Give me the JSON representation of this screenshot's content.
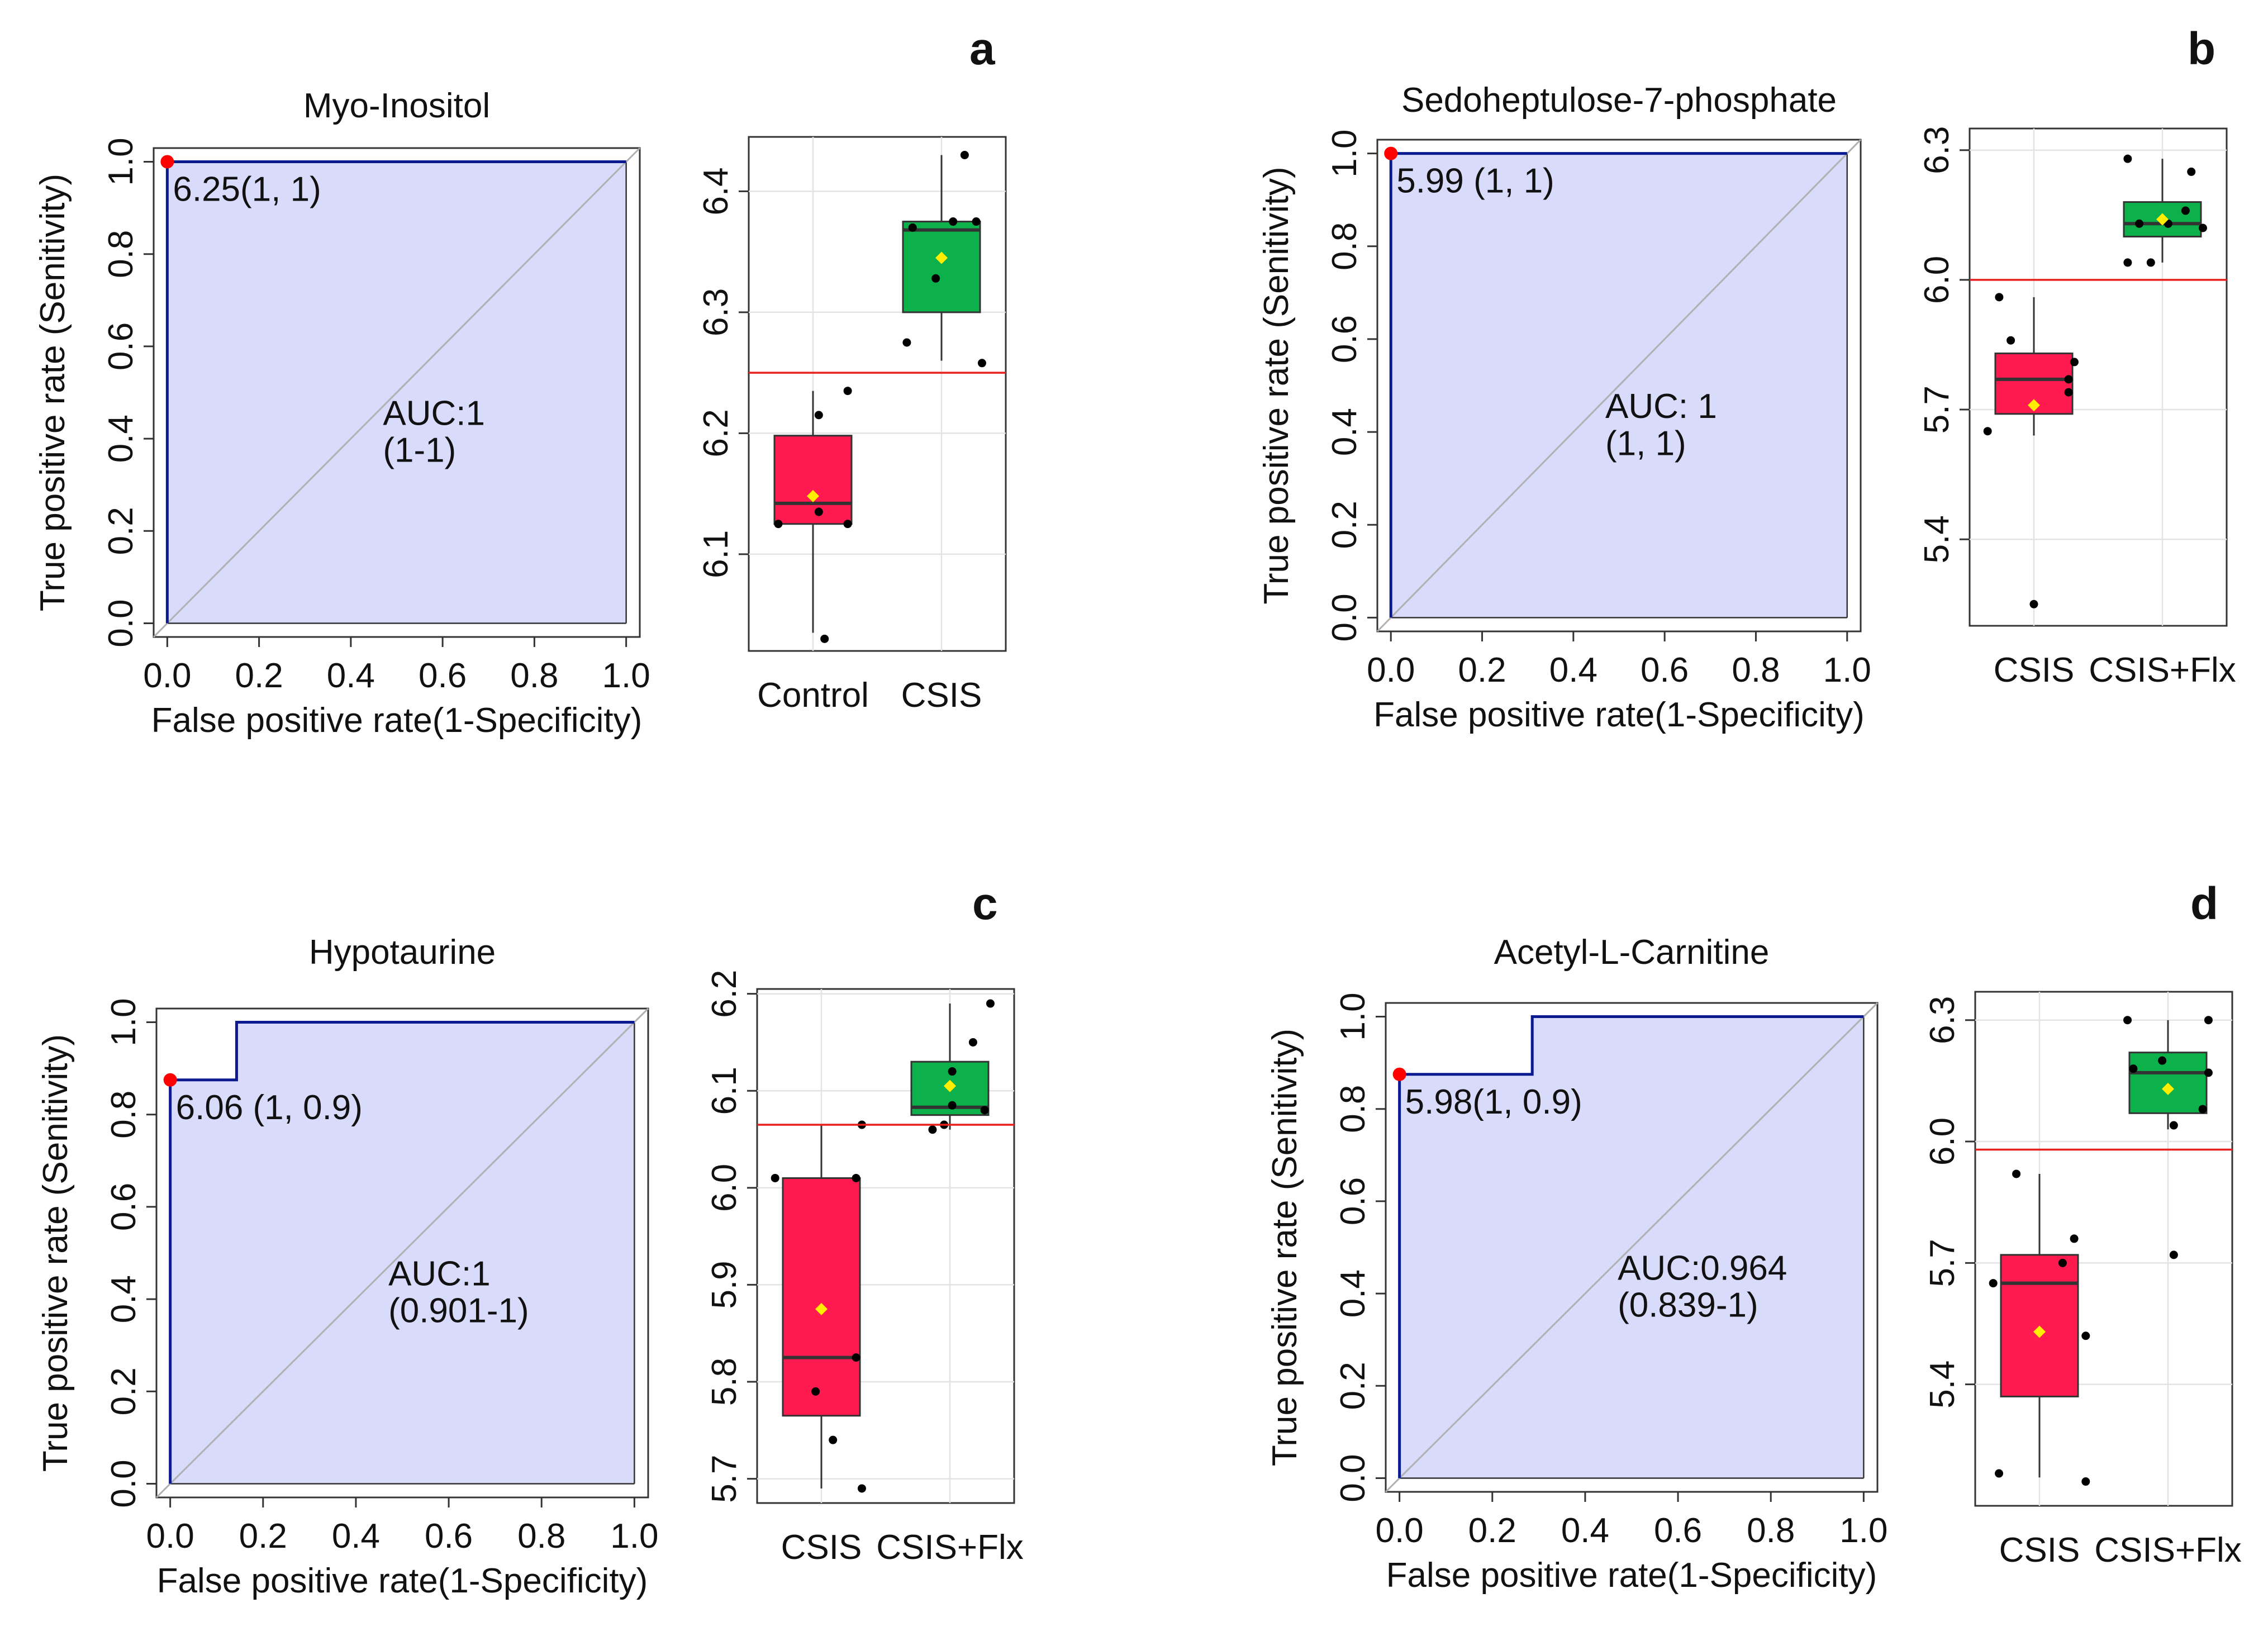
{
  "chart_data": [
    {
      "panel_letter": "a",
      "type": "line",
      "title": "Myo-Inositol",
      "xlabel": "False positive rate(1-Specificity)",
      "ylabel": "True positive rate (Senitivity)",
      "xlim": [
        0,
        1
      ],
      "ylim": [
        0,
        1
      ],
      "ticks": [
        "0.0",
        "0.2",
        "0.4",
        "0.6",
        "0.8",
        "1.0"
      ],
      "roc_x": [
        0,
        0,
        1
      ],
      "roc_y": [
        0,
        1,
        1
      ],
      "optimal_point": [
        0,
        1
      ],
      "threshold_label": "6.25(1, 1)",
      "auc_label": "AUC:1",
      "ci_label": "(1-1)",
      "boxplot": {
        "type": "box",
        "categories": [
          "Control",
          "CSIS"
        ],
        "ylim": [
          6.02,
          6.445
        ],
        "yticks": [
          "6.1",
          "6.2",
          "6.3",
          "6.4"
        ],
        "threshold": 6.25,
        "groups": [
          {
            "name": "Control",
            "whisker_low": 6.035,
            "q1": 6.125,
            "median": 6.142,
            "q3": 6.198,
            "whisker_high": 6.235,
            "mean": 6.148,
            "color": "#ff1a4f",
            "points": [
              [
                0.05,
                6.215
              ],
              [
                0.05,
                6.135
              ],
              [
                -0.3,
                6.125
              ],
              [
                0.3,
                6.125
              ],
              [
                0.1,
                6.03
              ],
              [
                0.3,
                6.235
              ]
            ]
          },
          {
            "name": "CSIS",
            "whisker_low": 6.26,
            "q1": 6.3,
            "median": 6.368,
            "q3": 6.375,
            "whisker_high": 6.43,
            "mean": 6.345,
            "color": "#0cb14b",
            "points": [
              [
                -0.3,
                6.275
              ],
              [
                -0.25,
                6.37
              ],
              [
                -0.05,
                6.328
              ],
              [
                0.1,
                6.375
              ],
              [
                0.3,
                6.375
              ],
              [
                0.2,
                6.43
              ],
              [
                0.35,
                6.258
              ]
            ]
          }
        ]
      }
    },
    {
      "panel_letter": "b",
      "type": "line",
      "title": "Sedoheptulose-7-phosphate",
      "xlabel": "False positive rate(1-Specificity)",
      "ylabel": "True positive rate (Senitivity)",
      "xlim": [
        0,
        1
      ],
      "ylim": [
        0,
        1
      ],
      "ticks": [
        "0.0",
        "0.2",
        "0.4",
        "0.6",
        "0.8",
        "1.0"
      ],
      "roc_x": [
        0,
        0,
        1
      ],
      "roc_y": [
        0,
        1,
        1
      ],
      "optimal_point": [
        0,
        1
      ],
      "threshold_label": "5.99 (1, 1)",
      "auc_label": "AUC: 1",
      "ci_label": "(1, 1)",
      "boxplot": {
        "type": "box",
        "categories": [
          "CSIS",
          "CSIS+Flx"
        ],
        "ylim": [
          5.2,
          6.35
        ],
        "yticks": [
          "5.4",
          "5.7",
          "6.0",
          "6.3"
        ],
        "threshold": 6.0,
        "groups": [
          {
            "name": "CSIS",
            "whisker_low": 5.64,
            "q1": 5.69,
            "median": 5.77,
            "q3": 5.83,
            "whisker_high": 5.96,
            "mean": 5.71,
            "color": "#ff1a4f",
            "points": [
              [
                -0.4,
                5.65
              ],
              [
                -0.3,
                5.96
              ],
              [
                -0.2,
                5.86
              ],
              [
                0.3,
                5.77
              ],
              [
                0.35,
                5.81
              ],
              [
                0.3,
                5.74
              ],
              [
                0.0,
                5.25
              ]
            ]
          },
          {
            "name": "CSIS+Flx",
            "whisker_low": 6.04,
            "q1": 6.1,
            "median": 6.13,
            "q3": 6.18,
            "whisker_high": 6.28,
            "mean": 6.14,
            "color": "#0cb14b",
            "points": [
              [
                -0.3,
                6.28
              ],
              [
                -0.2,
                6.13
              ],
              [
                -0.3,
                6.04
              ],
              [
                -0.1,
                6.04
              ],
              [
                0.05,
                6.13
              ],
              [
                0.2,
                6.16
              ],
              [
                0.35,
                6.12
              ],
              [
                0.25,
                6.25
              ]
            ]
          }
        ]
      }
    },
    {
      "panel_letter": "c",
      "type": "line",
      "title": "Hypotaurine",
      "xlabel": "False positive rate(1-Specificity)",
      "ylabel": "True positive rate (Senitivity)",
      "xlim": [
        0,
        1
      ],
      "ylim": [
        0,
        1
      ],
      "ticks": [
        "0.0",
        "0.2",
        "0.4",
        "0.6",
        "0.8",
        "1.0"
      ],
      "roc_x": [
        0,
        0,
        0.143,
        0.143,
        1
      ],
      "roc_y": [
        0,
        0.875,
        0.875,
        1,
        1
      ],
      "optimal_point": [
        0,
        0.875
      ],
      "threshold_label": "6.06 (1, 0.9)",
      "auc_label": "AUC:1",
      "ci_label": "(0.901-1)",
      "boxplot": {
        "type": "box",
        "categories": [
          "CSIS",
          "CSIS+Flx"
        ],
        "ylim": [
          5.675,
          6.205
        ],
        "yticks": [
          "5.7",
          "5.8",
          "5.9",
          "6.0",
          "6.1",
          "6.2"
        ],
        "threshold": 6.065,
        "groups": [
          {
            "name": "CSIS",
            "whisker_low": 5.69,
            "q1": 5.765,
            "median": 5.825,
            "q3": 6.01,
            "whisker_high": 6.065,
            "mean": 5.875,
            "color": "#ff1a4f",
            "points": [
              [
                -0.4,
                6.01
              ],
              [
                0.3,
                6.01
              ],
              [
                0.35,
                6.065
              ],
              [
                0.3,
                5.825
              ],
              [
                -0.05,
                5.79
              ],
              [
                0.1,
                5.74
              ],
              [
                0.35,
                5.69
              ]
            ]
          },
          {
            "name": "CSIS+Flx",
            "whisker_low": 6.06,
            "q1": 6.075,
            "median": 6.083,
            "q3": 6.13,
            "whisker_high": 6.19,
            "mean": 6.105,
            "color": "#0cb14b",
            "points": [
              [
                -0.15,
                6.06
              ],
              [
                -0.05,
                6.065
              ],
              [
                0.02,
                6.085
              ],
              [
                0.02,
                6.12
              ],
              [
                0.2,
                6.15
              ],
              [
                0.35,
                6.19
              ],
              [
                0.3,
                6.08
              ]
            ]
          }
        ]
      }
    },
    {
      "panel_letter": "d",
      "type": "line",
      "title": "Acetyl-L-Carnitine",
      "xlabel": "False positive rate(1-Specificity)",
      "ylabel": "True positive rate (Senitivity)",
      "xlim": [
        0,
        1
      ],
      "ylim": [
        0,
        1
      ],
      "ticks": [
        "0.0",
        "0.2",
        "0.4",
        "0.6",
        "0.8",
        "1.0"
      ],
      "roc_x": [
        0,
        0,
        0.286,
        0.286,
        1
      ],
      "roc_y": [
        0,
        0.875,
        0.875,
        1,
        1
      ],
      "optimal_point": [
        0,
        0.875
      ],
      "threshold_label": "5.98(1, 0.9)",
      "auc_label": "AUC:0.964",
      "ci_label": "(0.839-1)",
      "boxplot": {
        "type": "box",
        "categories": [
          "CSIS",
          "CSIS+Flx"
        ],
        "ylim": [
          5.1,
          6.37
        ],
        "yticks": [
          "5.4",
          "5.7",
          "6.0",
          "6.3"
        ],
        "threshold": 5.98,
        "groups": [
          {
            "name": "CSIS",
            "whisker_low": 5.17,
            "q1": 5.37,
            "median": 5.65,
            "q3": 5.72,
            "whisker_high": 5.92,
            "mean": 5.53,
            "color": "#ff1a4f",
            "points": [
              [
                -0.4,
                5.65
              ],
              [
                -0.35,
                5.18
              ],
              [
                -0.2,
                5.92
              ],
              [
                0.2,
                5.7
              ],
              [
                0.3,
                5.76
              ],
              [
                0.4,
                5.52
              ],
              [
                0.4,
                5.16
              ]
            ]
          },
          {
            "name": "CSIS+Flx",
            "whisker_low": 6.03,
            "q1": 6.07,
            "median": 6.17,
            "q3": 6.22,
            "whisker_high": 6.3,
            "mean": 6.13,
            "color": "#0cb14b",
            "points": [
              [
                -0.35,
                6.3
              ],
              [
                -0.3,
                6.18
              ],
              [
                -0.05,
                6.2
              ],
              [
                0.05,
                6.04
              ],
              [
                0.3,
                6.08
              ],
              [
                0.35,
                6.3
              ],
              [
                0.35,
                6.17
              ],
              [
                0.05,
                5.72
              ]
            ]
          }
        ]
      }
    }
  ]
}
